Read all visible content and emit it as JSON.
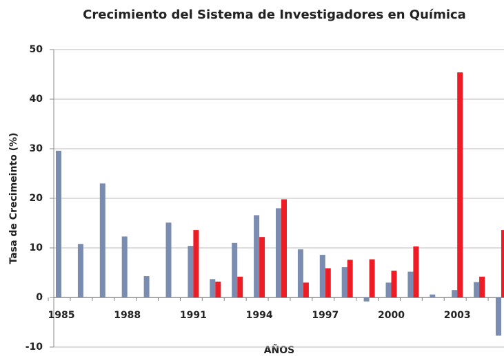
{
  "chart_data": {
    "type": "bar",
    "title": "Crecimiento del Sistema de Investigadores en Química",
    "x_label": "AÑOS",
    "y_label": "Tasa de Crecimeinto (%)",
    "categories": [
      "1985",
      null,
      null,
      "1988",
      null,
      null,
      "1991",
      null,
      null,
      "1994",
      null,
      null,
      "1997",
      null,
      null,
      "2000",
      null,
      null,
      "2003",
      null,
      null
    ],
    "series": [
      {
        "color": "#7a8db0",
        "values": [
          29.6,
          10.8,
          23.0,
          12.3,
          4.3,
          15.1,
          10.4,
          3.7,
          11.0,
          16.6,
          18.0,
          9.7,
          8.6,
          6.1,
          -0.8,
          3.0,
          5.2,
          0.6,
          1.5,
          3.1,
          -7.7
        ]
      },
      {
        "color": "#ee1c25",
        "values": [
          null,
          null,
          null,
          null,
          null,
          null,
          13.6,
          3.2,
          4.2,
          12.2,
          19.8,
          3.0,
          5.9,
          7.6,
          7.7,
          5.4,
          10.3,
          null,
          45.4,
          4.2,
          13.6
        ]
      }
    ],
    "ylim": [
      -10,
      50
    ],
    "yticks": [
      -10,
      0,
      10,
      20,
      30,
      40,
      50
    ],
    "grid": true
  }
}
